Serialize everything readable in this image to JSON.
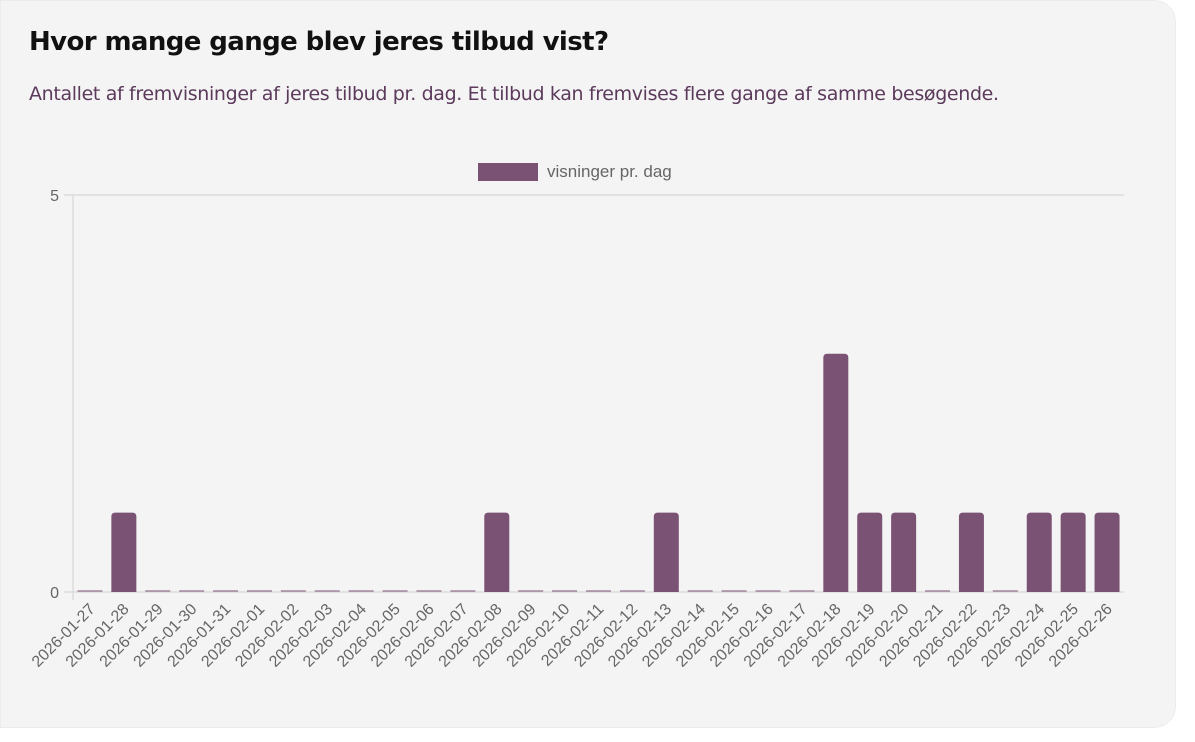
{
  "header": {
    "title": "Hvor mange gange blev jeres tilbud vist?",
    "subtitle": "Antallet af fremvisninger af jeres tilbud pr. dag. Et tilbud kan fremvises flere gange af samme besøgende."
  },
  "legend": {
    "label": "visninger pr. dag",
    "color": "#7a5273"
  },
  "chart_data": {
    "type": "bar",
    "title": "Hvor mange gange blev jeres tilbud vist?",
    "subtitle": "Antallet af fremvisninger af jeres tilbud pr. dag. Et tilbud kan fremvises flere gange af samme besøgende.",
    "xlabel": "",
    "ylabel": "",
    "ylim": [
      0,
      5
    ],
    "yticks": [
      0,
      5
    ],
    "grid": true,
    "legend_position": "top",
    "categories": [
      "2026-01-27",
      "2026-01-28",
      "2026-01-29",
      "2026-01-30",
      "2026-01-31",
      "2026-02-01",
      "2026-02-02",
      "2026-02-03",
      "2026-02-04",
      "2026-02-05",
      "2026-02-06",
      "2026-02-07",
      "2026-02-08",
      "2026-02-09",
      "2026-02-10",
      "2026-02-11",
      "2026-02-12",
      "2026-02-13",
      "2026-02-14",
      "2026-02-15",
      "2026-02-16",
      "2026-02-17",
      "2026-02-18",
      "2026-02-19",
      "2026-02-20",
      "2026-02-21",
      "2026-02-22",
      "2026-02-23",
      "2026-02-24",
      "2026-02-25",
      "2026-02-26"
    ],
    "series": [
      {
        "name": "visninger pr. dag",
        "color": "#7a5273",
        "values": [
          0,
          1,
          0,
          0,
          0,
          0,
          0,
          0,
          0,
          0,
          0,
          0,
          1,
          0,
          0,
          0,
          0,
          1,
          0,
          0,
          0,
          0,
          3,
          1,
          1,
          0,
          1,
          0,
          1,
          1,
          1
        ]
      }
    ]
  }
}
